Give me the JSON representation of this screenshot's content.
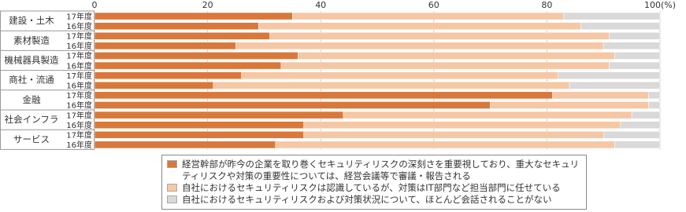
{
  "chart_data": {
    "type": "stacked-barh",
    "groups": [
      "建設・土木",
      "素材製造",
      "機械器具製造",
      "商社・流通",
      "金融",
      "社会インフラ",
      "サービス"
    ],
    "categories": [
      "17年度",
      "16年度",
      "17年度",
      "16年度",
      "17年度",
      "16年度",
      "17年度",
      "16年度",
      "17年度",
      "16年度",
      "17年度",
      "16年度",
      "17年度",
      "16年度"
    ],
    "series": [
      {
        "name": "経営幹部が昨今の企業を取り巻くセキュリティリスクの深刻さを重要視しており、重大なセキュリティリスクや対策の重要性については、経営会議等で審議・報告される",
        "color": "#d9783a",
        "values": [
          35,
          29,
          31,
          25,
          36,
          33,
          26,
          21,
          81,
          70,
          44,
          37,
          37,
          32
        ]
      },
      {
        "name": "自社におけるセキュリティリスクは認識しているが、対策はIT部門など担当部門に任せている",
        "color": "#f6c7a4",
        "values": [
          48,
          57,
          60,
          65,
          56,
          58,
          56,
          63,
          17,
          28,
          51,
          56,
          53,
          60
        ]
      },
      {
        "name": "自社におけるセキュリティリスクおよび対策状況について、ほとんど会話されることがない",
        "color": "#d9d9d9",
        "values": [
          17,
          14,
          9,
          10,
          8,
          9,
          18,
          16,
          2,
          2,
          5,
          7,
          10,
          8
        ]
      }
    ],
    "xlim": [
      0,
      100
    ],
    "xticks": [
      0,
      20,
      40,
      60,
      80,
      {
        "value": 100,
        "label": "100(%)"
      }
    ],
    "grid": true
  }
}
